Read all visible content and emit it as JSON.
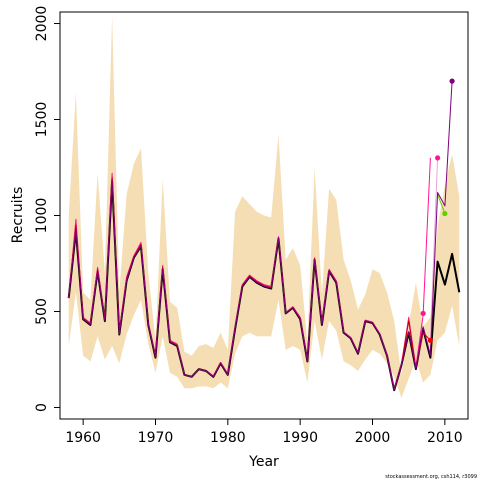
{
  "chart_data": {
    "type": "line",
    "title": "",
    "xlabel": "Year",
    "ylabel": "Recruits",
    "xlim": [
      1956.8,
      2013.2
    ],
    "ylim": [
      -60,
      2060
    ],
    "xticks": [
      1960,
      1970,
      1980,
      1990,
      2000,
      2010
    ],
    "yticks": [
      0,
      500,
      1000,
      1500,
      2000
    ],
    "grid": false,
    "band_color": "#f5deb3",
    "years": [
      1958,
      1959,
      1960,
      1961,
      1962,
      1963,
      1964,
      1965,
      1966,
      1967,
      1968,
      1969,
      1970,
      1971,
      1972,
      1973,
      1974,
      1975,
      1976,
      1977,
      1978,
      1979,
      1980,
      1981,
      1982,
      1983,
      1984,
      1985,
      1986,
      1987,
      1988,
      1989,
      1990,
      1991,
      1992,
      1993,
      1994,
      1995,
      1996,
      1997,
      1998,
      1999,
      2000,
      2001,
      2002,
      2003,
      2004,
      2005,
      2006,
      2007,
      2008,
      2009,
      2010,
      2011,
      2012
    ],
    "ci_upper": [
      1000,
      1640,
      600,
      560,
      1220,
      700,
      2040,
      600,
      1110,
      1270,
      1350,
      700,
      350,
      1190,
      550,
      520,
      290,
      270,
      320,
      330,
      310,
      390,
      300,
      1020,
      1100,
      1060,
      1020,
      1000,
      990,
      1420,
      770,
      830,
      740,
      340,
      1250,
      590,
      1140,
      1080,
      770,
      660,
      510,
      590,
      720,
      700,
      600,
      450,
      170,
      430,
      650,
      420,
      470,
      940,
      1160,
      1320,
      1100
    ],
    "ci_lower": [
      320,
      600,
      270,
      240,
      370,
      250,
      320,
      230,
      380,
      480,
      560,
      330,
      180,
      370,
      180,
      160,
      100,
      100,
      110,
      110,
      100,
      130,
      100,
      280,
      370,
      390,
      370,
      370,
      370,
      560,
      300,
      320,
      300,
      130,
      450,
      250,
      450,
      400,
      240,
      220,
      190,
      250,
      300,
      280,
      230,
      160,
      50,
      150,
      250,
      130,
      170,
      350,
      390,
      530,
      320
    ],
    "series": [
      {
        "color": "#000000",
        "values": [
          570,
          920,
          460,
          430,
          710,
          450,
          1180,
          380,
          660,
          780,
          840,
          430,
          260,
          720,
          340,
          320,
          170,
          160,
          200,
          190,
          160,
          230,
          170,
          410,
          630,
          680,
          650,
          630,
          620,
          880,
          490,
          520,
          460,
          240,
          770,
          430,
          710,
          650,
          390,
          360,
          280,
          450,
          440,
          380,
          270,
          90,
          220,
          390,
          200,
          410,
          260,
          760,
          640,
          800,
          600
        ]
      },
      {
        "color": "#e6a6d6",
        "values": [
          null,
          null,
          null,
          null,
          null,
          null,
          null,
          null,
          null,
          null,
          null,
          null,
          null,
          null,
          null,
          null,
          null,
          null,
          null,
          null,
          null,
          null,
          null,
          null,
          null,
          null,
          null,
          null,
          null,
          null,
          null,
          null,
          null,
          null,
          null,
          null,
          null,
          null,
          null,
          null,
          null,
          null,
          null,
          null,
          null,
          null,
          null,
          null,
          null,
          null,
          350,
          1300,
          null,
          null,
          null
        ]
      },
      {
        "color": "#ff1493",
        "values": [
          570,
          980,
          470,
          440,
          730,
          460,
          1220,
          390,
          680,
          790,
          860,
          440,
          270,
          740,
          350,
          330,
          170,
          160,
          200,
          190,
          165,
          235,
          175,
          420,
          640,
          690,
          660,
          640,
          630,
          890,
          495,
          525,
          470,
          245,
          780,
          440,
          720,
          660,
          395,
          365,
          285,
          455,
          445,
          385,
          275,
          95,
          225,
          470,
          210,
          480,
          1300,
          null,
          null,
          null,
          null
        ]
      },
      {
        "color": "#cc0000",
        "values": [
          575,
          950,
          465,
          435,
          720,
          455,
          1200,
          385,
          670,
          785,
          850,
          435,
          265,
          730,
          345,
          325,
          170,
          160,
          200,
          190,
          162,
          232,
          172,
          415,
          635,
          685,
          655,
          635,
          625,
          885,
          492,
          522,
          465,
          242,
          775,
          435,
          715,
          655,
          392,
          362,
          282,
          452,
          442,
          382,
          272,
          92,
          222,
          450,
          205,
          390,
          350,
          null,
          null,
          null,
          null
        ]
      },
      {
        "color": "#66cc00",
        "values": [
          null,
          null,
          null,
          null,
          null,
          null,
          null,
          null,
          null,
          null,
          null,
          null,
          null,
          null,
          null,
          null,
          null,
          null,
          null,
          null,
          null,
          null,
          null,
          null,
          null,
          null,
          null,
          null,
          null,
          null,
          null,
          null,
          null,
          null,
          null,
          null,
          null,
          null,
          null,
          null,
          null,
          null,
          null,
          null,
          null,
          null,
          null,
          null,
          null,
          null,
          null,
          1110,
          1010,
          null,
          null
        ]
      },
      {
        "color": "#7f007f",
        "values": [
          572,
          930,
          462,
          432,
          712,
          452,
          1185,
          382,
          662,
          782,
          842,
          432,
          262,
          722,
          342,
          322,
          170,
          160,
          200,
          190,
          161,
          231,
          171,
          412,
          632,
          682,
          652,
          632,
          622,
          882,
          491,
          521,
          462,
          241,
          772,
          432,
          712,
          652,
          391,
          361,
          281,
          451,
          441,
          381,
          271,
          91,
          221,
          395,
          202,
          420,
          270,
          1120,
          1050,
          1700,
          null
        ]
      }
    ],
    "end_points": [
      {
        "year": 2008,
        "value": 350,
        "color": "#ff0000"
      },
      {
        "year": 2007,
        "value": 490,
        "color": "#ff1493"
      },
      {
        "year": 2009,
        "value": 1300,
        "color": "#ff1493"
      },
      {
        "year": 2010,
        "value": 1010,
        "color": "#66cc00"
      },
      {
        "year": 2011,
        "value": 1700,
        "color": "#7f007f"
      }
    ]
  },
  "footer": {
    "credit": "stockassessment.org, csh114, r3099"
  }
}
